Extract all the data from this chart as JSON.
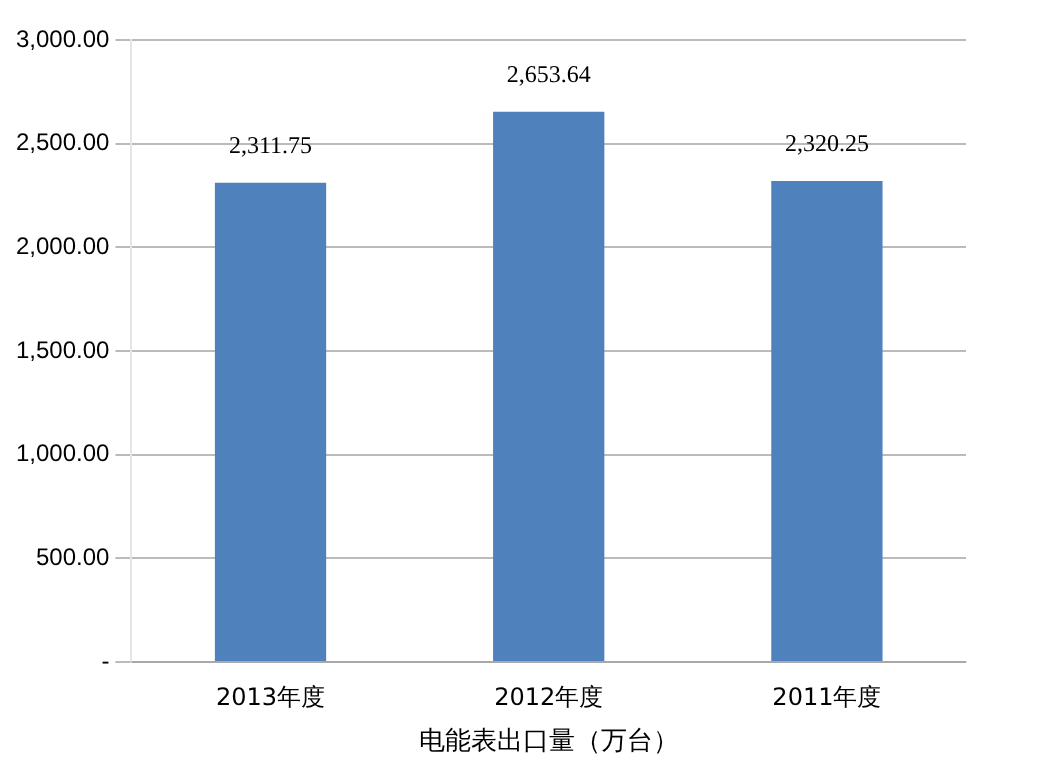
{
  "chart_data": {
    "type": "bar",
    "xlabel": "电能表出口量（万台）",
    "categories": [
      "2013年度",
      "2012年度",
      "2011年度"
    ],
    "values": [
      2311.75,
      2653.64,
      2320.25
    ],
    "value_labels": [
      "2,311.75",
      "2,653.64",
      "2,320.25"
    ],
    "color": "#4f81bd",
    "ylim": [
      0,
      3000
    ],
    "yticks": [
      {
        "value": 0,
        "label": "-"
      },
      {
        "value": 500,
        "label": "500.00"
      },
      {
        "value": 1000,
        "label": "1,000.00"
      },
      {
        "value": 1500,
        "label": "1,500.00"
      },
      {
        "value": 2000,
        "label": "2,000.00"
      },
      {
        "value": 2500,
        "label": "2,500.00"
      },
      {
        "value": 3000,
        "label": "3,000.00"
      }
    ],
    "grid": "y"
  }
}
